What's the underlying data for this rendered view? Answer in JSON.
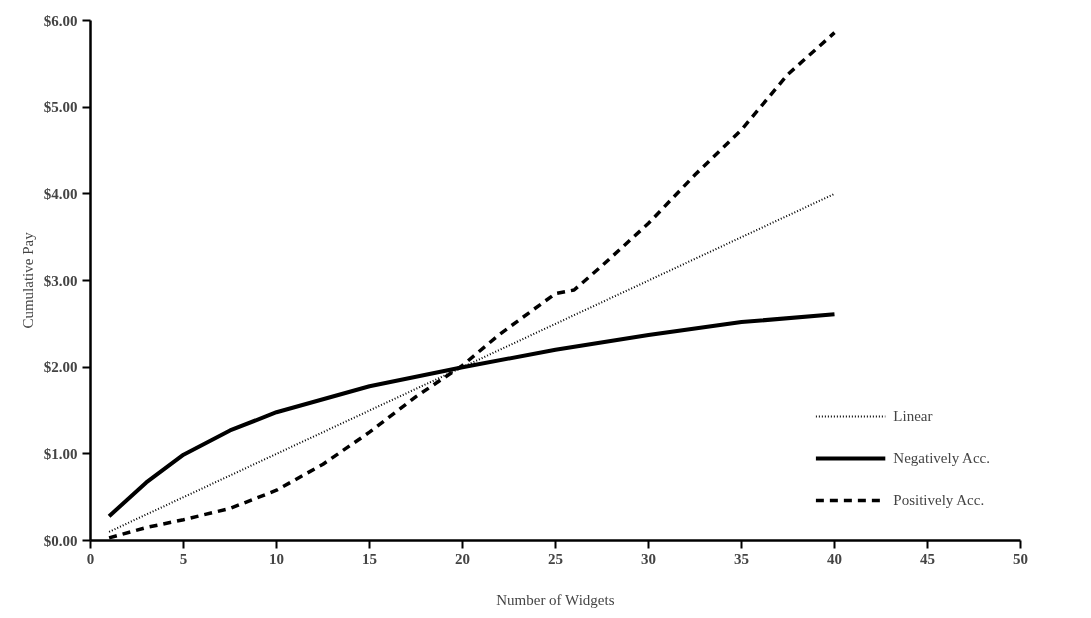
{
  "chart_data": {
    "type": "line",
    "xlabel": "Number of Widgets",
    "ylabel": "Cumulative Pay",
    "xlim": [
      0,
      50
    ],
    "xticks": [
      0,
      5,
      10,
      15,
      20,
      25,
      30,
      35,
      40,
      45,
      50
    ],
    "ylim": [
      0,
      6
    ],
    "yticks": [
      {
        "value": 0,
        "label": "$0.00"
      },
      {
        "value": 1,
        "label": "$1.00"
      },
      {
        "value": 2,
        "label": "$2.00"
      },
      {
        "value": 3,
        "label": "$3.00"
      },
      {
        "value": 4,
        "label": "$4.00"
      },
      {
        "value": 5,
        "label": "$5.00"
      },
      {
        "value": 6,
        "label": "$6.00"
      }
    ],
    "grid": false,
    "legend": "right",
    "marker": "none",
    "series": [
      {
        "name": "Linear",
        "color": "#000000",
        "line_style": "dotted",
        "x": [
          1,
          40
        ],
        "values": [
          0.1,
          4.0
        ]
      },
      {
        "name": "Negatively Acc.",
        "color": "#000000",
        "line_style": "solid",
        "x": [
          1,
          3,
          5,
          7.5,
          10,
          15,
          20,
          25,
          30,
          35,
          40
        ],
        "values": [
          0.28,
          0.67,
          0.99,
          1.27,
          1.48,
          1.78,
          2.0,
          2.2,
          2.37,
          2.52,
          2.61
        ]
      },
      {
        "name": "Positively Acc.",
        "color": "#000000",
        "line_style": "dashed",
        "x": [
          1,
          3,
          5,
          7.5,
          10,
          12.5,
          15,
          17.5,
          20,
          22,
          25,
          26,
          27.5,
          30,
          32.5,
          35,
          37.5,
          40
        ],
        "values": [
          0.03,
          0.15,
          0.24,
          0.37,
          0.58,
          0.88,
          1.25,
          1.66,
          2.02,
          2.38,
          2.85,
          2.89,
          3.17,
          3.66,
          4.22,
          4.74,
          5.38,
          5.86
        ]
      }
    ]
  }
}
